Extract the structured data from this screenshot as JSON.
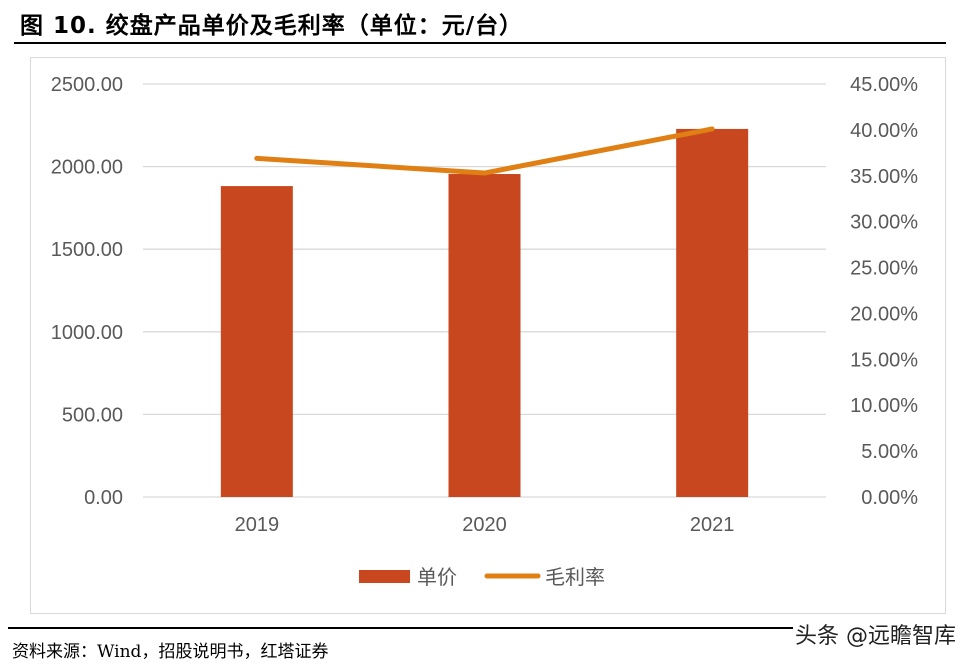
{
  "title": "图 10. 绞盘产品单价及毛利率（单位：元/台）",
  "source": "资料来源：Wind，招股说明书，红塔证券",
  "watermark": "头条 @远瞻智库",
  "chart_data": {
    "type": "bar+line",
    "categories": [
      "2019",
      "2020",
      "2021"
    ],
    "series": [
      {
        "name": "单价",
        "type": "bar",
        "axis": "left",
        "color": "#C9471E",
        "values": [
          1882,
          1955,
          2228
        ]
      },
      {
        "name": "毛利率",
        "type": "line",
        "axis": "right",
        "color": "#E07F14",
        "values": [
          36.9,
          35.3,
          40.1
        ]
      }
    ],
    "left_axis": {
      "ylim": [
        0,
        2500
      ],
      "ticks": [
        "0.00",
        "500.00",
        "1000.00",
        "1500.00",
        "2000.00",
        "2500.00"
      ]
    },
    "right_axis": {
      "ylim": [
        0,
        45
      ],
      "unit": "%",
      "ticks": [
        "0.00%",
        "5.00%",
        "10.00%",
        "15.00%",
        "20.00%",
        "25.00%",
        "30.00%",
        "35.00%",
        "40.00%",
        "45.00%"
      ]
    },
    "grid": true,
    "legend": "bottom"
  }
}
